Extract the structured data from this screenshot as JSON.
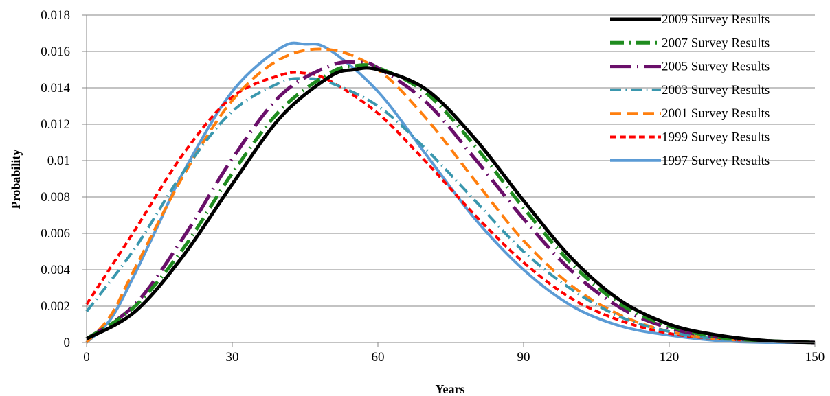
{
  "chart_data": {
    "type": "line",
    "title": "",
    "xlabel": "Years",
    "ylabel": "Probability",
    "xlim": [
      0,
      150
    ],
    "ylim": [
      0,
      0.018
    ],
    "x_ticks": [
      0,
      30,
      60,
      90,
      120,
      150
    ],
    "x_tick_labels": [
      "0",
      "30",
      "60",
      "90",
      "120",
      "150"
    ],
    "y_ticks": [
      0,
      0.002,
      0.004,
      0.006,
      0.008,
      0.01,
      0.012,
      0.014,
      0.016,
      0.018
    ],
    "y_tick_labels": [
      "0",
      "0.002",
      "0.004",
      "0.006",
      "0.008",
      "0.01",
      "0.012",
      "0.014",
      "0.016",
      "0.018"
    ],
    "grid": "horizontal",
    "legend_position": "right",
    "series": [
      {
        "name": "2009 Survey Results",
        "color": "#000000",
        "dash": "solid",
        "width": 5,
        "x": [
          0,
          10,
          20,
          30,
          40,
          50,
          55,
          60,
          70,
          80,
          90,
          100,
          110,
          120,
          130,
          140,
          150
        ],
        "y": [
          0.0002,
          0.0017,
          0.0048,
          0.0087,
          0.0124,
          0.0146,
          0.015,
          0.015,
          0.0139,
          0.0112,
          0.0078,
          0.0046,
          0.0023,
          0.001,
          0.0004,
          0.0001,
          0.0
        ]
      },
      {
        "name": "2007 Survey Results",
        "color": "#1f8c1f",
        "dash": "dashdot",
        "width": 5,
        "x": [
          0,
          10,
          20,
          30,
          40,
          50,
          55,
          60,
          70,
          80,
          90,
          100,
          110,
          120,
          130,
          140,
          150
        ],
        "y": [
          0.0002,
          0.002,
          0.0052,
          0.0093,
          0.0128,
          0.0148,
          0.0152,
          0.0151,
          0.0137,
          0.0108,
          0.0074,
          0.0043,
          0.0021,
          0.0009,
          0.0003,
          0.0001,
          0.0
        ]
      },
      {
        "name": "2005 Survey Results",
        "color": "#6a0f6a",
        "dash": "longdashdot",
        "width": 5,
        "x": [
          0,
          10,
          20,
          30,
          40,
          50,
          56,
          60,
          70,
          80,
          90,
          100,
          110,
          120,
          130,
          140,
          150
        ],
        "y": [
          0.0002,
          0.0021,
          0.0058,
          0.0101,
          0.0136,
          0.0152,
          0.0154,
          0.0151,
          0.0132,
          0.0101,
          0.0068,
          0.0039,
          0.0019,
          0.0008,
          0.0003,
          0.0001,
          0.0
        ]
      },
      {
        "name": "2003 Survey Results",
        "color": "#3a97ae",
        "dash": "dashdot",
        "width": 4,
        "x": [
          0,
          10,
          20,
          30,
          40,
          45,
          50,
          60,
          70,
          80,
          90,
          100,
          110,
          120,
          130,
          140,
          150
        ],
        "y": [
          0.0017,
          0.0052,
          0.0094,
          0.0127,
          0.0143,
          0.0145,
          0.0143,
          0.013,
          0.0106,
          0.0078,
          0.005,
          0.0029,
          0.0014,
          0.0006,
          0.0002,
          0.0001,
          0.0
        ]
      },
      {
        "name": "2001 Survey Results",
        "color": "#ff7f0e",
        "dash": "longdash",
        "width": 4,
        "x": [
          0,
          5,
          10,
          20,
          30,
          40,
          50,
          60,
          70,
          80,
          90,
          100,
          110,
          120,
          130,
          140,
          150
        ],
        "y": [
          0.0,
          0.0015,
          0.0041,
          0.0092,
          0.0133,
          0.0156,
          0.0161,
          0.015,
          0.0123,
          0.0089,
          0.0056,
          0.0031,
          0.0015,
          0.0006,
          0.0002,
          0.0001,
          0.0
        ]
      },
      {
        "name": "1999 Survey Results",
        "color": "#ff0000",
        "dash": "dash",
        "width": 4,
        "x": [
          0,
          10,
          20,
          30,
          40,
          45,
          50,
          60,
          70,
          80,
          90,
          100,
          110,
          120,
          130,
          140,
          150
        ],
        "y": [
          0.0021,
          0.0062,
          0.0104,
          0.0135,
          0.0147,
          0.0148,
          0.0144,
          0.0126,
          0.0099,
          0.007,
          0.0044,
          0.0024,
          0.0012,
          0.0005,
          0.0002,
          0.0001,
          0.0
        ]
      },
      {
        "name": "1997 Survey Results",
        "color": "#5b9bd5",
        "dash": "solid",
        "width": 4,
        "x": [
          0,
          5,
          10,
          15,
          20,
          30,
          40,
          45,
          50,
          60,
          70,
          80,
          90,
          100,
          110,
          120,
          130,
          140,
          150
        ],
        "y": [
          0.0,
          0.0013,
          0.0038,
          0.0066,
          0.0094,
          0.0138,
          0.0162,
          0.0164,
          0.0161,
          0.0138,
          0.0103,
          0.0068,
          0.004,
          0.002,
          0.0009,
          0.0004,
          0.0001,
          0.0,
          0.0
        ]
      }
    ]
  }
}
